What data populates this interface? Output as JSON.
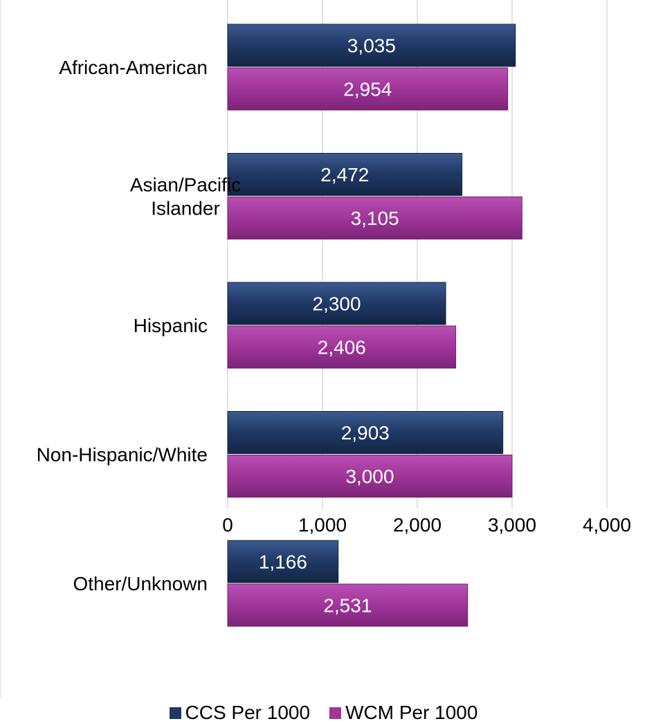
{
  "chart_data": {
    "type": "bar",
    "orientation": "horizontal",
    "categories": [
      "African-American",
      "Asian/Pacific\nIslander",
      "Hispanic",
      "Non-Hispanic/White",
      "Other/Unknown"
    ],
    "series": [
      {
        "name": "CCS Per 1000",
        "color": "#1f3864",
        "values": [
          3035,
          2472,
          2300,
          2903,
          1166
        ],
        "labels": [
          "3,035",
          "2,472",
          "2,300",
          "2,903",
          "1,166"
        ]
      },
      {
        "name": "WCM Per 1000",
        "color": "#a0359a",
        "values": [
          2954,
          3105,
          2406,
          3000,
          2531
        ],
        "labels": [
          "2,954",
          "3,105",
          "2,406",
          "3,000",
          "2,531"
        ]
      }
    ],
    "xlim": [
      0,
      4000
    ],
    "xticks": [
      0,
      1000,
      2000,
      3000,
      4000
    ],
    "xtick_labels": [
      "0",
      "1,000",
      "2,000",
      "3,000",
      "4,000"
    ],
    "title": "",
    "xlabel": "",
    "ylabel": "",
    "grid": true,
    "legend": "bottom"
  }
}
